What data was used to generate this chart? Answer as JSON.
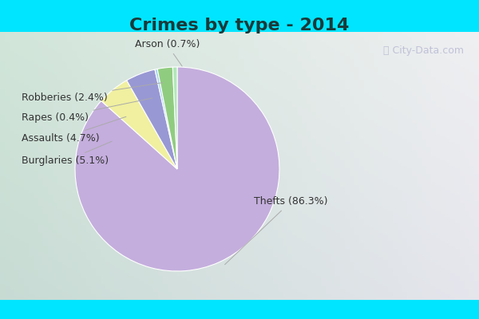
{
  "title": "Crimes by type - 2014",
  "labels": [
    "Thefts",
    "Burglaries",
    "Assaults",
    "Rapes",
    "Robberies",
    "Arson"
  ],
  "values": [
    86.3,
    5.1,
    4.7,
    0.4,
    2.4,
    0.7
  ],
  "pie_colors": [
    "#c4aedd",
    "#f0f0a0",
    "#9898d4",
    "#a8d4f0",
    "#90cc80",
    "#b0e8b8"
  ],
  "title_color": "#1a3a3a",
  "title_fontsize": 16,
  "label_fontsize": 9,
  "label_color": "#333333",
  "line_color": "#aaaaaa",
  "cyan_color": "#00e5ff",
  "bg_color_left": "#d8ecd8",
  "bg_color_right": "#e8f4f8",
  "watermark": "City-Data.com"
}
